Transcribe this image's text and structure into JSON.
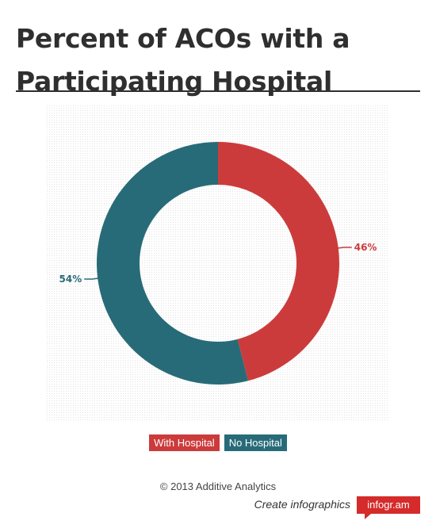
{
  "title": "Percent of ACOs with a Participating Hospital",
  "chart_data": {
    "type": "pie",
    "donut": true,
    "title": "Percent of ACOs with a Participating Hospital",
    "categories": [
      "With Hospital",
      "No Hospital"
    ],
    "values": [
      46,
      54
    ],
    "value_labels": [
      "46%",
      "54%"
    ],
    "colors": [
      "#cc3b3b",
      "#286b78"
    ],
    "legend_position": "bottom-center"
  },
  "footer": {
    "copyright": "© 2013 Additive Analytics",
    "create_text": "Create infographics",
    "brand": "infogr.am"
  }
}
